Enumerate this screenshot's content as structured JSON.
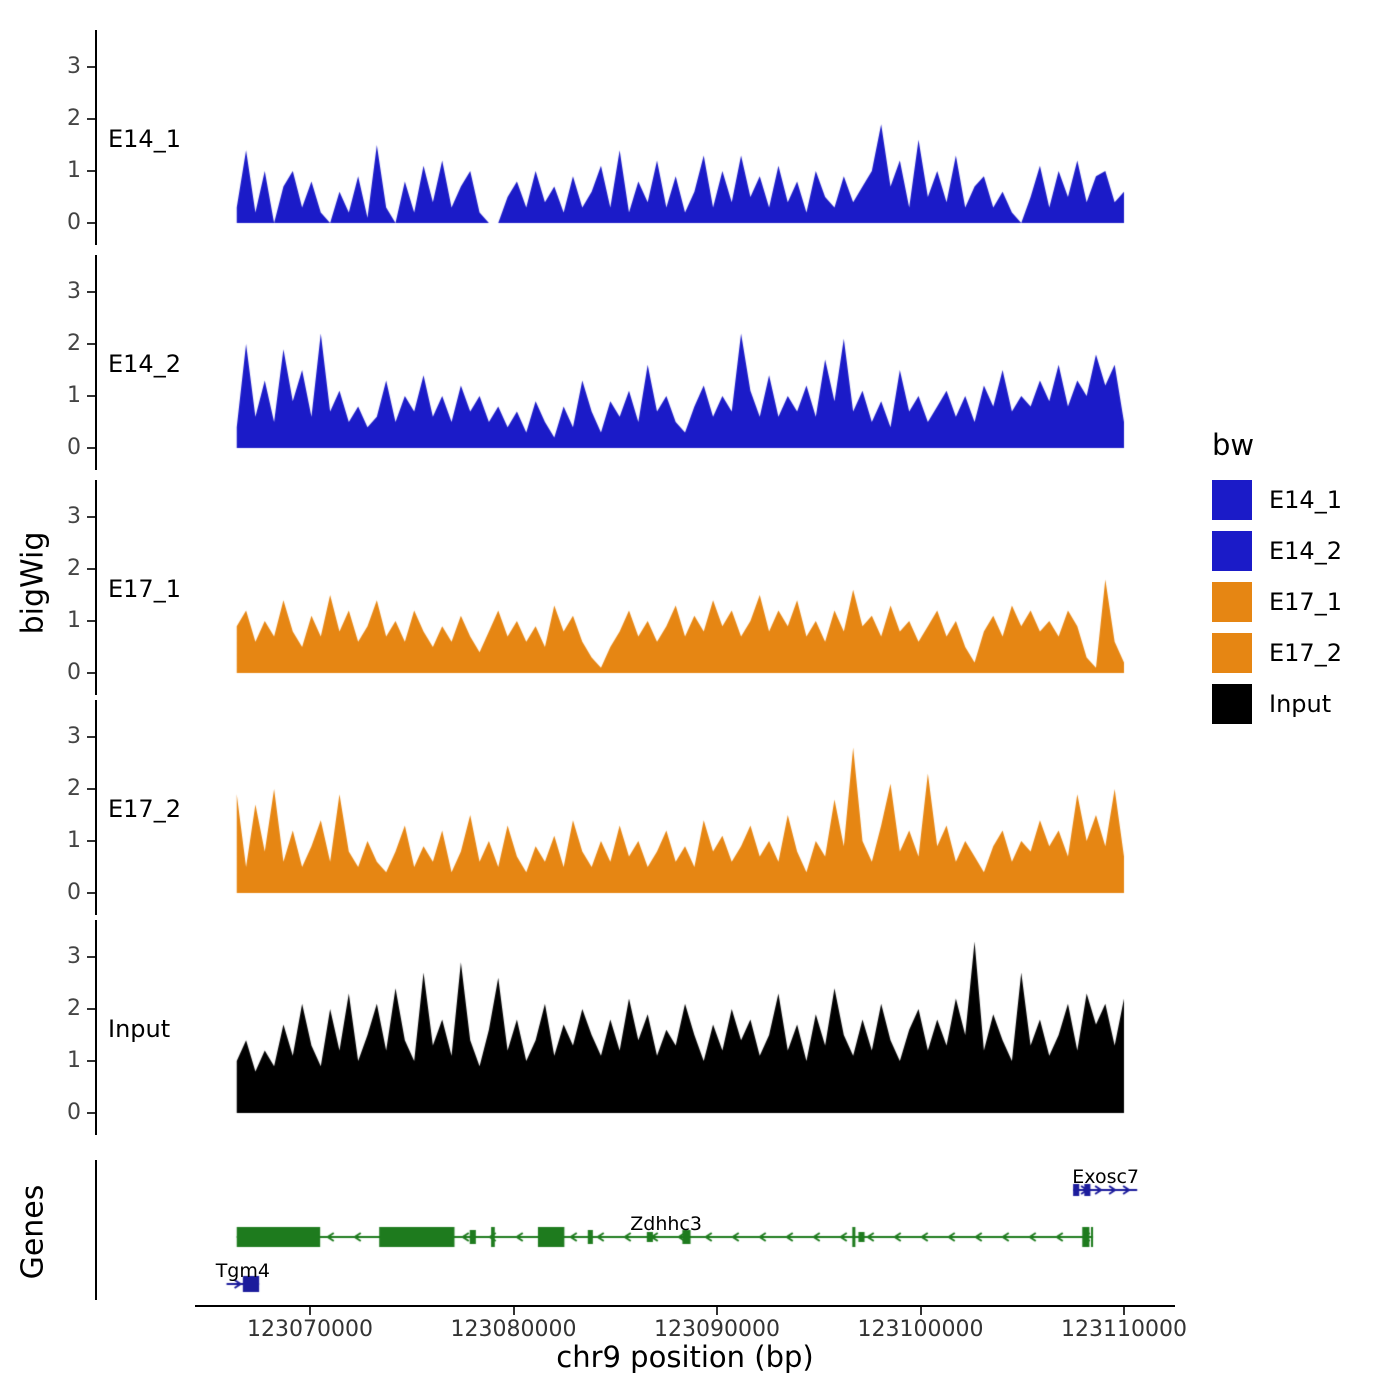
{
  "figure": {
    "y_axis_label": "bigWig",
    "genes_axis_label": "Genes",
    "x_axis_label": "chr9 position (bp)"
  },
  "legend": {
    "title": "bw",
    "entries": [
      {
        "label": "E14_1",
        "color": "#1b1bc8"
      },
      {
        "label": "E14_2",
        "color": "#1b1bc8"
      },
      {
        "label": "E17_1",
        "color": "#e68613"
      },
      {
        "label": "E17_2",
        "color": "#e68613"
      },
      {
        "label": "Input",
        "color": "#000000"
      }
    ]
  },
  "chart_data": {
    "type": "area",
    "title": "",
    "xlabel": "chr9 position (bp)",
    "ylabel": "bigWig",
    "chromosome": "chr9",
    "x_domain_bp": [
      123064349,
      123112506
    ],
    "data_range_bp": [
      123066400,
      123110000
    ],
    "ylim": [
      0,
      3.5
    ],
    "y_ticks": [
      0,
      1,
      2,
      3
    ],
    "x_ticks": [
      {
        "bp": 123070000,
        "label": "123070000"
      },
      {
        "bp": 123080000,
        "label": "123080000"
      },
      {
        "bp": 123090000,
        "label": "123090000"
      },
      {
        "bp": 123100000,
        "label": "123100000"
      },
      {
        "bp": 123110000,
        "label": "123110000"
      }
    ],
    "tracks": [
      {
        "name": "E14_1",
        "color": "#1b1bc8",
        "values": [
          0.3,
          1.4,
          0.2,
          1.0,
          0,
          0.7,
          1.0,
          0.3,
          0.8,
          0.2,
          0,
          0.6,
          0.2,
          0.9,
          0.1,
          1.5,
          0.3,
          0,
          0.8,
          0.2,
          1.1,
          0.4,
          1.2,
          0.3,
          0.7,
          1.0,
          0.2,
          0,
          0,
          0.5,
          0.8,
          0.3,
          1.0,
          0.4,
          0.7,
          0.2,
          0.9,
          0.3,
          0.6,
          1.1,
          0.3,
          1.4,
          0.2,
          0.8,
          0.4,
          1.2,
          0.3,
          0.9,
          0.2,
          0.6,
          1.3,
          0.3,
          1.0,
          0.4,
          1.3,
          0.5,
          0.9,
          0.3,
          1.1,
          0.4,
          0.8,
          0.2,
          1.0,
          0.5,
          0.3,
          0.9,
          0.4,
          0.7,
          1.0,
          1.9,
          0.7,
          1.2,
          0.3,
          1.6,
          0.5,
          1.0,
          0.4,
          1.3,
          0.3,
          0.7,
          0.9,
          0.3,
          0.6,
          0.2,
          0,
          0.5,
          1.1,
          0.3,
          1.0,
          0.5,
          1.2,
          0.4,
          0.9,
          1.0,
          0.4,
          0.6
        ]
      },
      {
        "name": "E14_2",
        "color": "#1b1bc8",
        "values": [
          0.4,
          2.0,
          0.6,
          1.3,
          0.5,
          1.9,
          0.9,
          1.5,
          0.6,
          2.2,
          0.7,
          1.1,
          0.5,
          0.8,
          0.4,
          0.6,
          1.3,
          0.5,
          1.0,
          0.7,
          1.4,
          0.6,
          1.0,
          0.5,
          1.2,
          0.7,
          1.0,
          0.5,
          0.8,
          0.4,
          0.7,
          0.3,
          0.9,
          0.5,
          0.2,
          0.8,
          0.4,
          1.3,
          0.7,
          0.3,
          0.9,
          0.6,
          1.1,
          0.5,
          1.6,
          0.7,
          1.0,
          0.5,
          0.3,
          0.8,
          1.2,
          0.6,
          1.0,
          0.7,
          2.2,
          1.1,
          0.6,
          1.4,
          0.6,
          1.0,
          0.7,
          1.2,
          0.6,
          1.7,
          0.9,
          2.1,
          0.7,
          1.1,
          0.5,
          0.9,
          0.4,
          1.5,
          0.7,
          1.0,
          0.5,
          0.8,
          1.1,
          0.6,
          1.0,
          0.5,
          1.2,
          0.8,
          1.5,
          0.7,
          1.0,
          0.8,
          1.3,
          0.9,
          1.6,
          0.8,
          1.3,
          1.0,
          1.8,
          1.2,
          1.6,
          0.5
        ]
      },
      {
        "name": "E17_1",
        "color": "#e68613",
        "values": [
          0.9,
          1.2,
          0.6,
          1.0,
          0.7,
          1.4,
          0.8,
          0.5,
          1.1,
          0.7,
          1.5,
          0.8,
          1.2,
          0.6,
          0.9,
          1.4,
          0.7,
          1.0,
          0.6,
          1.2,
          0.8,
          0.5,
          0.9,
          0.6,
          1.1,
          0.7,
          0.4,
          0.8,
          1.2,
          0.7,
          1.0,
          0.6,
          0.9,
          0.5,
          1.3,
          0.8,
          1.1,
          0.6,
          0.3,
          0.1,
          0.5,
          0.8,
          1.2,
          0.7,
          1.0,
          0.6,
          0.9,
          1.3,
          0.7,
          1.1,
          0.8,
          1.4,
          0.9,
          1.2,
          0.7,
          1.0,
          1.5,
          0.8,
          1.2,
          0.9,
          1.4,
          0.7,
          1.0,
          0.6,
          1.2,
          0.8,
          1.6,
          0.9,
          1.1,
          0.7,
          1.3,
          0.8,
          1.0,
          0.6,
          0.9,
          1.2,
          0.7,
          1.0,
          0.5,
          0.2,
          0.8,
          1.1,
          0.7,
          1.3,
          0.9,
          1.2,
          0.8,
          1.0,
          0.7,
          1.2,
          0.9,
          0.3,
          0.1,
          1.8,
          0.6,
          0.2
        ]
      },
      {
        "name": "E17_2",
        "color": "#e68613",
        "values": [
          1.9,
          0.5,
          1.7,
          0.8,
          2.0,
          0.6,
          1.2,
          0.5,
          0.9,
          1.4,
          0.6,
          1.9,
          0.8,
          0.5,
          1.0,
          0.6,
          0.4,
          0.8,
          1.3,
          0.5,
          0.9,
          0.6,
          1.2,
          0.4,
          0.8,
          1.5,
          0.6,
          1.0,
          0.5,
          1.3,
          0.7,
          0.4,
          0.9,
          0.6,
          1.1,
          0.5,
          1.4,
          0.8,
          0.5,
          1.0,
          0.6,
          1.3,
          0.7,
          1.0,
          0.5,
          0.8,
          1.2,
          0.6,
          0.9,
          0.5,
          1.4,
          0.8,
          1.1,
          0.6,
          0.9,
          1.3,
          0.7,
          1.0,
          0.6,
          1.5,
          0.8,
          0.4,
          1.0,
          0.7,
          1.8,
          0.9,
          2.8,
          1.0,
          0.6,
          1.3,
          2.1,
          0.8,
          1.2,
          0.7,
          2.3,
          0.9,
          1.3,
          0.6,
          1.0,
          0.7,
          0.4,
          0.9,
          1.2,
          0.6,
          1.0,
          0.8,
          1.4,
          0.9,
          1.2,
          0.7,
          1.9,
          1.0,
          1.5,
          0.9,
          2.0,
          0.7
        ]
      },
      {
        "name": "Input",
        "color": "#000000",
        "values": [
          1.0,
          1.4,
          0.8,
          1.2,
          0.9,
          1.7,
          1.1,
          2.1,
          1.3,
          0.9,
          2.0,
          1.2,
          2.3,
          1.0,
          1.5,
          2.1,
          1.2,
          2.4,
          1.4,
          1.0,
          2.7,
          1.3,
          1.8,
          1.1,
          2.9,
          1.4,
          0.9,
          1.6,
          2.6,
          1.2,
          1.8,
          1.0,
          1.4,
          2.1,
          1.1,
          1.7,
          1.3,
          2.0,
          1.5,
          1.1,
          1.8,
          1.2,
          2.2,
          1.4,
          1.9,
          1.1,
          1.6,
          1.3,
          2.1,
          1.5,
          1.0,
          1.7,
          1.2,
          2.0,
          1.4,
          1.8,
          1.1,
          1.5,
          2.3,
          1.2,
          1.7,
          1.0,
          1.9,
          1.3,
          2.4,
          1.5,
          1.1,
          1.8,
          1.2,
          2.1,
          1.4,
          1.0,
          1.6,
          2.0,
          1.2,
          1.8,
          1.3,
          2.2,
          1.5,
          3.3,
          1.2,
          1.9,
          1.4,
          1.0,
          2.7,
          1.3,
          1.8,
          1.1,
          1.5,
          2.1,
          1.2,
          2.3,
          1.7,
          2.1,
          1.3,
          2.2
        ]
      }
    ],
    "genes": [
      {
        "name": "Exosc7",
        "strand": "+",
        "color": "#1c1c9c",
        "row": 0,
        "start": 123107500,
        "end": 123110650,
        "label_bp": 123109100,
        "exons": [
          [
            123107500,
            123107800,
            12
          ],
          [
            123108050,
            123108350,
            12
          ]
        ]
      },
      {
        "name": "Zdhhc3",
        "strand": "-",
        "color": "#1e7b1e",
        "row": 1,
        "start": 123066400,
        "end": 123108480,
        "label_bp": 123087500,
        "exons": [
          [
            123066400,
            123070500,
            20
          ],
          [
            123073400,
            123077100,
            20
          ],
          [
            123077850,
            123078150,
            14
          ],
          [
            123078900,
            123079080,
            20
          ],
          [
            123081200,
            123082500,
            20
          ],
          [
            123083650,
            123083900,
            14
          ],
          [
            123086550,
            123086850,
            10
          ],
          [
            123088300,
            123088700,
            14
          ],
          [
            123096650,
            123096800,
            20
          ],
          [
            123096950,
            123097250,
            10
          ],
          [
            123107950,
            123108300,
            20
          ],
          [
            123108380,
            123108480,
            20
          ]
        ]
      },
      {
        "name": "Tgm4",
        "strand": "+",
        "color": "#1c1c9c",
        "row": 2,
        "start": 123065900,
        "end": 123067500,
        "label_bp": 123066700,
        "exons": [
          [
            123066700,
            123067500,
            16
          ]
        ]
      }
    ]
  }
}
